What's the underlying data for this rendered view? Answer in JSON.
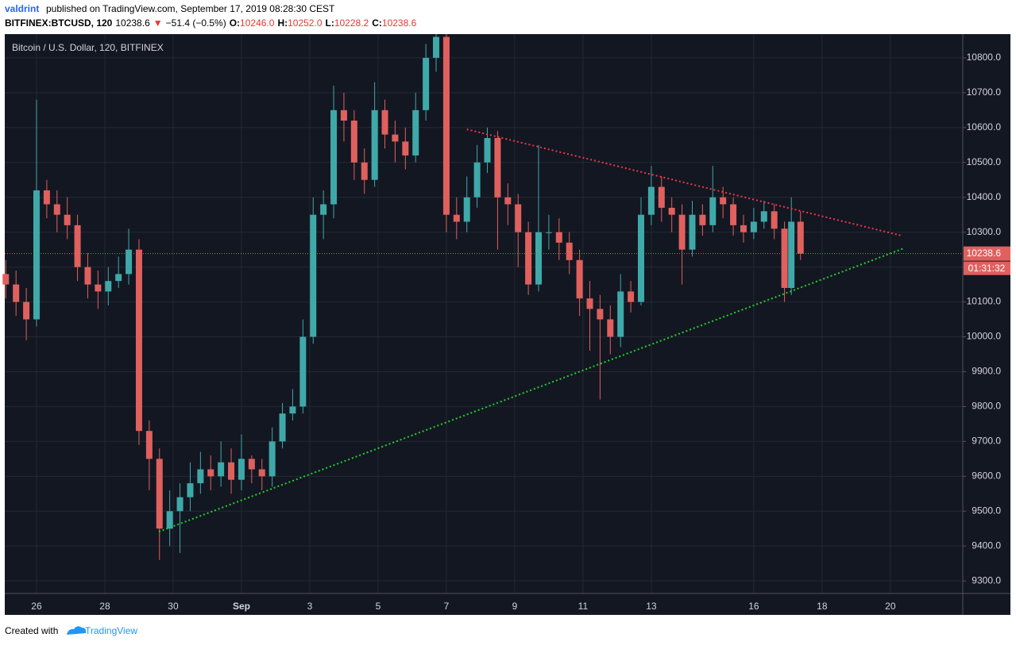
{
  "header": {
    "author": "valdrint",
    "published": "published on TradingView.com, September 17, 2019 08:28:30 CEST"
  },
  "symbol_bar": {
    "symbol": "BITFINEX:BTCUSD, 120",
    "price": "10238.6",
    "arrow": "▼",
    "change": "−51.4 (−0.5%)",
    "ohlc": [
      {
        "label": "O:",
        "value": "10246.0"
      },
      {
        "label": "H:",
        "value": "10252.0"
      },
      {
        "label": "L:",
        "value": "10228.2"
      },
      {
        "label": "C:",
        "value": "10238.6"
      }
    ]
  },
  "footer": {
    "created_with": "Created with",
    "brand": "TradingView"
  },
  "chart_data": {
    "type": "candlestick",
    "title": "Bitcoin / U.S. Dollar, 120, BITFINEX",
    "up_color": "#3fa9a9",
    "down_color": "#e0605e",
    "grid": true,
    "x": [
      -0.9,
      -0.6,
      -0.3,
      0.0,
      0.3,
      0.6,
      0.9,
      1.2,
      1.5,
      1.8,
      2.1,
      2.4,
      2.7,
      3.0,
      3.3,
      3.6,
      3.9,
      4.2,
      4.5,
      4.8,
      5.1,
      5.4,
      5.7,
      6.0,
      6.3,
      6.6,
      6.9,
      7.2,
      7.5,
      7.8,
      8.1,
      8.4,
      8.7,
      9.0,
      9.3,
      9.6,
      9.9,
      10.2,
      10.5,
      10.8,
      11.1,
      11.4,
      11.7,
      12.0,
      12.3,
      12.6,
      12.9,
      13.2,
      13.5,
      13.8,
      14.1,
      14.4,
      14.7,
      15.0,
      15.3,
      15.6,
      15.9,
      16.2,
      16.5,
      16.8,
      17.1,
      17.4,
      17.7,
      18.0,
      18.3,
      18.6,
      18.9,
      19.2,
      19.5,
      19.8,
      20.1,
      20.4,
      20.7,
      21.0,
      21.3,
      21.6,
      21.9,
      22.1,
      22.37
    ],
    "open": [
      10180,
      10150,
      10100,
      10050,
      10420,
      10380,
      10350,
      10320,
      10200,
      10150,
      10130,
      10160,
      10180,
      10250,
      9730,
      9650,
      9450,
      9500,
      9540,
      9580,
      9620,
      9600,
      9640,
      9590,
      9650,
      9620,
      9600,
      9700,
      9780,
      9800,
      10000,
      10350,
      10380,
      10650,
      10620,
      10500,
      10450,
      10650,
      10580,
      10560,
      10520,
      10650,
      10800,
      10860,
      10350,
      10330,
      10400,
      10500,
      10570,
      10400,
      10380,
      10300,
      10150,
      10300,
      10300,
      10270,
      10220,
      10110,
      10080,
      10050,
      10000,
      10130,
      10100,
      10350,
      10430,
      10370,
      10350,
      10250,
      10350,
      10320,
      10400,
      10380,
      10320,
      10300,
      10330,
      10360,
      10310,
      10140,
      10330
    ],
    "high": [
      10220,
      10190,
      10140,
      10680,
      10450,
      10420,
      10400,
      10350,
      10240,
      10190,
      10200,
      10230,
      10310,
      10280,
      9760,
      9680,
      9560,
      9580,
      9640,
      9670,
      9660,
      9700,
      9680,
      9720,
      9660,
      9650,
      9740,
      9810,
      9850,
      10050,
      10400,
      10420,
      10720,
      10700,
      10650,
      10540,
      10730,
      10680,
      10620,
      10600,
      10700,
      10840,
      10868,
      10868,
      10400,
      10460,
      10550,
      10600,
      10590,
      10440,
      10410,
      10330,
      10550,
      10350,
      10340,
      10300,
      10250,
      10160,
      10120,
      10090,
      10180,
      10160,
      10400,
      10490,
      10460,
      10400,
      10380,
      10390,
      10380,
      10490,
      10430,
      10400,
      10350,
      10370,
      10390,
      10380,
      10330,
      10400,
      10360
    ],
    "low": [
      10110,
      10060,
      9990,
      10030,
      10340,
      10300,
      10280,
      10160,
      10110,
      10080,
      10090,
      10140,
      10150,
      9690,
      9560,
      9360,
      9400,
      9380,
      9500,
      9550,
      9560,
      9570,
      9550,
      9560,
      9580,
      9560,
      9570,
      9680,
      9760,
      9780,
      9980,
      10280,
      10340,
      10560,
      10450,
      10410,
      10430,
      10540,
      10500,
      10480,
      10500,
      10620,
      10760,
      10300,
      10280,
      10300,
      10370,
      10470,
      10250,
      10320,
      10200,
      10120,
      10130,
      10250,
      10220,
      10180,
      10060,
      9960,
      9820,
      9950,
      9970,
      10070,
      10090,
      10320,
      10330,
      10300,
      10150,
      10230,
      10290,
      10300,
      10340,
      10290,
      10270,
      10280,
      10310,
      10280,
      10100,
      10120,
      10220
    ],
    "close": [
      10150,
      10100,
      10050,
      10420,
      10380,
      10350,
      10320,
      10200,
      10150,
      10130,
      10160,
      10180,
      10250,
      9730,
      9650,
      9450,
      9500,
      9540,
      9580,
      9620,
      9600,
      9640,
      9590,
      9650,
      9620,
      9600,
      9700,
      9780,
      9800,
      10000,
      10350,
      10380,
      10650,
      10620,
      10500,
      10450,
      10650,
      10580,
      10560,
      10520,
      10650,
      10800,
      10860,
      10350,
      10330,
      10400,
      10500,
      10570,
      10400,
      10380,
      10300,
      10150,
      10300,
      10300,
      10270,
      10220,
      10110,
      10080,
      10050,
      10000,
      10130,
      10100,
      10350,
      10430,
      10370,
      10350,
      10250,
      10350,
      10320,
      10400,
      10380,
      10320,
      10300,
      10330,
      10360,
      10310,
      10140,
      10330,
      10238.6
    ],
    "xlim": [
      -0.93,
      27.12
    ],
    "xticks": [
      {
        "value": 0,
        "label": "26"
      },
      {
        "value": 2,
        "label": "28"
      },
      {
        "value": 4,
        "label": "30"
      },
      {
        "value": 6,
        "label": "Sep"
      },
      {
        "value": 8,
        "label": "3"
      },
      {
        "value": 10,
        "label": "5"
      },
      {
        "value": 12,
        "label": "7"
      },
      {
        "value": 14,
        "label": "9"
      },
      {
        "value": 16,
        "label": "11"
      },
      {
        "value": 18,
        "label": "13"
      },
      {
        "value": 21,
        "label": "16"
      },
      {
        "value": 23,
        "label": "18"
      },
      {
        "value": 25,
        "label": "20"
      }
    ],
    "ylim": [
      9264,
      10868
    ],
    "yticks": [
      {
        "value": 9300,
        "label": "9300.0"
      },
      {
        "value": 9400,
        "label": "9400.0"
      },
      {
        "value": 9500,
        "label": "9500.0"
      },
      {
        "value": 9600,
        "label": "9600.0"
      },
      {
        "value": 9700,
        "label": "9700.0"
      },
      {
        "value": 9800,
        "label": "9800.0"
      },
      {
        "value": 9900,
        "label": "9900.0"
      },
      {
        "value": 10000,
        "label": "10000.0"
      },
      {
        "value": 10100,
        "label": "10100.0"
      },
      {
        "value": 10200,
        "label": "10200.0"
      },
      {
        "value": 10300,
        "label": "10300.0"
      },
      {
        "value": 10400,
        "label": "10400.0"
      },
      {
        "value": 10500,
        "label": "10500.0"
      },
      {
        "value": 10600,
        "label": "10600.0"
      },
      {
        "value": 10700,
        "label": "10700.0"
      },
      {
        "value": 10800,
        "label": "10800.0"
      }
    ],
    "last_price": 10238.6,
    "countdown": "01:31:32",
    "trendlines": [
      {
        "color": "#f23645",
        "x": [
          12.6,
          25.33
        ],
        "y": [
          10595,
          10290
        ]
      },
      {
        "color": "#22d22a",
        "x": [
          3.58,
          25.4
        ],
        "y": [
          9441,
          10254
        ]
      }
    ]
  }
}
